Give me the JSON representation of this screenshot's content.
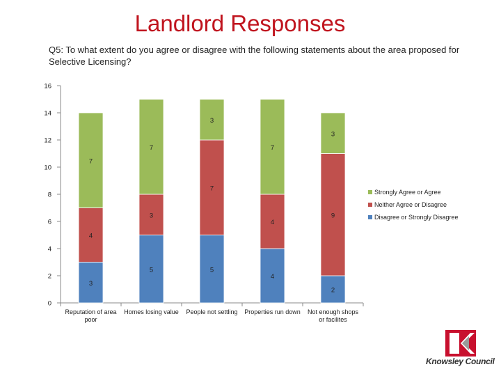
{
  "page": {
    "title": "Landlord Responses",
    "question": "Q5: To what extent do you agree or disagree with the following statements about the area proposed for Selective Licensing?",
    "logo_text": "Knowsley Council"
  },
  "colors": {
    "agree": "#9bbb59",
    "neither": "#c0504d",
    "disagree": "#4f81bd",
    "title": "#c0141e"
  },
  "chart_data": {
    "type": "bar",
    "stacked": true,
    "title": "",
    "xlabel": "",
    "ylabel": "",
    "ylim": [
      0,
      16
    ],
    "yticks": [
      0,
      2,
      4,
      6,
      8,
      10,
      12,
      14,
      16
    ],
    "grid": false,
    "legend_position": "right",
    "categories": [
      [
        "Reputation of area",
        "poor"
      ],
      [
        "Homes losing value"
      ],
      [
        "People not settling"
      ],
      [
        "Properties run down"
      ],
      [
        "Not enough shops",
        "or facilites"
      ]
    ],
    "series": [
      {
        "name": "Disagree or Strongly Disagree",
        "color": "#4f81bd",
        "values": [
          3,
          5,
          5,
          4,
          2
        ]
      },
      {
        "name": "Neither Agree or Disagree",
        "color": "#c0504d",
        "values": [
          4,
          3,
          7,
          4,
          9
        ]
      },
      {
        "name": "Strongly Agree or Agree",
        "color": "#9bbb59",
        "values": [
          7,
          7,
          3,
          7,
          3
        ]
      }
    ],
    "legend_order": [
      "Strongly Agree or Agree",
      "Neither Agree or Disagree",
      "Disagree or Strongly Disagree"
    ]
  }
}
